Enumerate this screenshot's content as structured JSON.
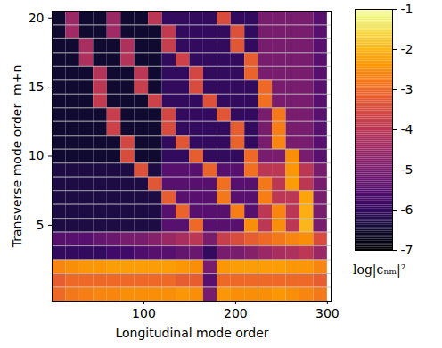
{
  "chart_data": {
    "type": "heatmap",
    "xlabel": "Longitudinal mode order",
    "ylabel": "Transverse mode order  m+n",
    "color": "inferno",
    "xlim": [
      0,
      305
    ],
    "xticks": [
      100,
      200,
      300
    ],
    "ylim": [
      -0.5,
      20.5
    ],
    "yticks": [
      5,
      10,
      15,
      20
    ],
    "grid": true,
    "x_edges": [
      0,
      15,
      30,
      45,
      60,
      75,
      90,
      105,
      120,
      135,
      150,
      165,
      180,
      195,
      210,
      225,
      240,
      255,
      270,
      285,
      300
    ],
    "y": [
      0,
      1,
      2,
      3,
      4,
      5,
      6,
      7,
      8,
      9,
      10,
      11,
      12,
      13,
      14,
      15,
      16,
      17,
      18,
      19,
      20
    ],
    "values": [
      [
        -3,
        -2.8,
        -2.7,
        -2.6,
        -2.6,
        -2.5,
        -2.5,
        -2.5,
        -2.5,
        -2.4,
        -2.5,
        -5,
        -2.4,
        -2.5,
        -2.5,
        -2.5,
        -2.4,
        -2.5,
        -2.6,
        -2.8
      ],
      [
        -3.2,
        -3,
        -3,
        -3,
        -3,
        -3,
        -3,
        -3,
        -3,
        -3.2,
        -3.2,
        -5.5,
        -3,
        -3,
        -3,
        -3,
        -3,
        -3,
        -3,
        -3.2
      ],
      [
        -2.6,
        -2.5,
        -2.4,
        -2.4,
        -2.3,
        -2.3,
        -2.3,
        -2.3,
        -2.3,
        -2.4,
        -2.5,
        -5,
        -2.4,
        -2.3,
        -2.3,
        -2.3,
        -2.3,
        -2.4,
        -2.4,
        -2.6
      ],
      [
        -6,
        -6,
        -6,
        -6,
        -5.8,
        -5.8,
        -5.6,
        -5.5,
        -5.5,
        -5.3,
        -5.2,
        -6,
        -5,
        -5,
        -4.8,
        -4.5,
        -4.3,
        -4.2,
        -4,
        -4.5
      ],
      [
        -5.5,
        -5.5,
        -5.5,
        -5.3,
        -5.2,
        -5,
        -5,
        -4.8,
        -4.5,
        -4.3,
        -4,
        -5,
        -3.8,
        -3.5,
        -3.2,
        -3,
        -2.8,
        -2.6,
        -2.5,
        -3.5
      ],
      [
        -6.3,
        -6.3,
        -6.3,
        -6.3,
        -6.3,
        -6.3,
        -6.3,
        -6.3,
        -5.5,
        -5.5,
        -3,
        -5.5,
        -5.5,
        -5.5,
        -2.5,
        -4,
        -2.5,
        -4,
        -2,
        -5
      ],
      [
        -6.3,
        -6.3,
        -6.3,
        -6.3,
        -6.3,
        -6.3,
        -6.3,
        -6.3,
        -5.5,
        -3.1,
        -5.5,
        -5.5,
        -5.5,
        -2.7,
        -5.5,
        -4,
        -2.6,
        -4,
        -2.1,
        -5
      ],
      [
        -6.3,
        -6.3,
        -6.3,
        -6.3,
        -6.3,
        -6.3,
        -6.3,
        -6.3,
        -3.2,
        -5.5,
        -5.5,
        -5.5,
        -2.8,
        -5.5,
        -5.5,
        -2.7,
        -4,
        -4,
        -2.2,
        -5
      ],
      [
        -6.3,
        -6.3,
        -6.3,
        -6.3,
        -6.3,
        -6.3,
        -6.3,
        -3.3,
        -5.5,
        -5.5,
        -5.5,
        -5.5,
        -2.9,
        -5.5,
        -5.5,
        -2.8,
        -4,
        -2.3,
        -4,
        -5
      ],
      [
        -6.3,
        -6.3,
        -6.3,
        -6.3,
        -6.3,
        -6.3,
        -3.4,
        -6.3,
        -5.5,
        -5.5,
        -5.5,
        -3.1,
        -5.5,
        -5.5,
        -2.9,
        -4,
        -4,
        -2.4,
        -4,
        -5
      ],
      [
        -6.5,
        -6.5,
        -6.5,
        -6.5,
        -6.5,
        -3.5,
        -6.5,
        -6.5,
        -6,
        -6,
        -3.2,
        -6,
        -6,
        -6,
        -3,
        -5,
        -5,
        -2.5,
        -5,
        -5.5
      ],
      [
        -6.5,
        -6.5,
        -6.5,
        -6.5,
        -6.5,
        -3.6,
        -6.5,
        -6.5,
        -6,
        -3.3,
        -6,
        -6,
        -6,
        -3.1,
        -6,
        -5,
        -2.6,
        -5,
        -5,
        -5.5
      ],
      [
        -6.5,
        -6.5,
        -6.5,
        -6.5,
        -3.7,
        -6.5,
        -6.5,
        -6.5,
        -3.5,
        -6,
        -6,
        -6,
        -6,
        -3.2,
        -6,
        -5,
        -2.7,
        -5,
        -5,
        -5.5
      ],
      [
        -6.5,
        -6.5,
        -6.5,
        -6.5,
        -3.8,
        -6.5,
        -6.5,
        -6.5,
        -3.6,
        -6,
        -6,
        -6,
        -3.3,
        -6,
        -6,
        -5,
        -2.8,
        -5,
        -5,
        -5.5
      ],
      [
        -6.5,
        -6.5,
        -6.5,
        -3.9,
        -6.5,
        -6.5,
        -6.5,
        -3.7,
        -6,
        -6,
        -6,
        -3.4,
        -6,
        -6,
        -6,
        -2.9,
        -5,
        -5,
        -5,
        -5.5
      ],
      [
        -6.5,
        -6.5,
        -6.5,
        -4,
        -6.5,
        -6.5,
        -3.8,
        -6.5,
        -6,
        -6,
        -3.5,
        -6,
        -6,
        -6,
        -6,
        -3,
        -5,
        -5,
        -5,
        -5.5
      ],
      [
        -6.5,
        -6.5,
        -6.5,
        -4.1,
        -6.5,
        -6.5,
        -4,
        -6.5,
        -6,
        -6,
        -3.6,
        -6,
        -6,
        -6,
        -3.1,
        -5,
        -5,
        -5,
        -5,
        -5.5
      ],
      [
        -6.5,
        -6.5,
        -4.2,
        -6.5,
        -6.5,
        -4.1,
        -6.5,
        -6.5,
        -6,
        -3.7,
        -6,
        -6,
        -6,
        -6,
        -3.2,
        -5,
        -5,
        -5,
        -5,
        -5.5
      ],
      [
        -6.5,
        -6.5,
        -4.3,
        -6.5,
        -6.5,
        -4.2,
        -6.5,
        -6.5,
        -3.8,
        -6,
        -6,
        -6,
        -6,
        -3.3,
        -6,
        -5,
        -5,
        -5,
        -5,
        -5.5
      ],
      [
        -6.5,
        -4.4,
        -6.5,
        -6.5,
        -4.4,
        -6.5,
        -6.5,
        -6.5,
        -3.9,
        -6,
        -6,
        -6,
        -6,
        -3.4,
        -6,
        -5,
        -5,
        -5,
        -5,
        -5.5
      ],
      [
        -6.5,
        -4.5,
        -6.5,
        -6.5,
        -4.5,
        -6.5,
        -6.5,
        -4,
        -6,
        -6,
        -6,
        -6,
        -3.5,
        -6,
        -6,
        -5,
        -5,
        -5,
        -5,
        -5.5
      ]
    ],
    "colorbar": {
      "label": "log|cₙₘ|²",
      "lim": [
        -7,
        -1
      ],
      "ticks": [
        -1,
        -2,
        -3,
        -4,
        -5,
        -6,
        -7
      ]
    }
  }
}
